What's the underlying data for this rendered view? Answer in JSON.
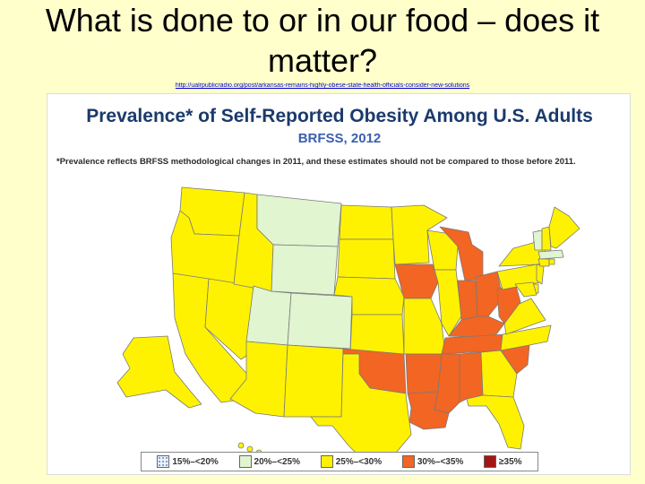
{
  "slide": {
    "title": "What is done to or in our food – does it matter?",
    "source_url": "http://ualrpublicradio.org/post/arkansas-remains-highly-obese-state-health-officials-consider-new-solutions"
  },
  "map": {
    "title": "Prevalence* of Self-Reported Obesity Among U.S. Adults",
    "subtitle": "BRFSS, 2012",
    "note": "*Prevalence reflects BRFSS methodological changes in 2011, and these estimates should not be compared to those before 2011.",
    "legend": [
      {
        "label": "15%–<20%",
        "color": "#EAF2FF",
        "pattern": "dots"
      },
      {
        "label": "20%–<25%",
        "color": "#E0F5D0"
      },
      {
        "label": "25%–<30%",
        "color": "#FFF200"
      },
      {
        "label": "30%–<35%",
        "color": "#F26522"
      },
      {
        "label": "≥35%",
        "color": "#A31515"
      }
    ],
    "colors": {
      "c20": "#E0F5D0",
      "c25": "#FFF200",
      "c30": "#F26522",
      "border": "#7A7A7A"
    }
  }
}
